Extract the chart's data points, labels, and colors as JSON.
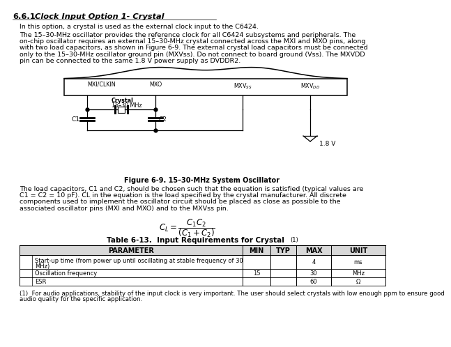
{
  "title_num": "6.6.1",
  "title_text": "Clock Input Option 1- Crystal",
  "para1": "In this option, a crystal is used as the external clock input to the C6424.",
  "p2_l1": "The 15–30-MHz oscillator provides the reference clock for all C6424 subsystems and peripherals. The",
  "p2_l2": "on-chip oscillator requires an external 15–30-MHz crystal connected across the MXI and MXO pins, along",
  "p2_l3": "with two load capacitors, as shown in Figure 6-9. The external crystal load capacitors must be connected",
  "p2_l4": "only to the 15–30-MHz oscillator ground pin (MXVss). Do not connect to board ground (Vss). The MXVDD",
  "p2_l5": "pin can be connected to the same 1.8 V power supply as DVDDR2.",
  "figure_caption": "Figure 6-9. 15–30-MHz System Oscillator",
  "p3_l1": "The load capacitors, C1 and C2, should be chosen such that the equation is satisfied (typical values are",
  "p3_l2": "C1 = C2 = 10 pF). CL in the equation is the load specified by the crystal manufacturer. All discrete",
  "p3_l3": "components used to implement the oscillator circuit should be placed as close as possible to the",
  "p3_l4": "associated oscillator pins (MXI and MXO) and to the MXVss pin.",
  "table_title": "Table 6-13.  Input Requirements for Crystal",
  "table_sup": "(1)",
  "table_headers": [
    "PARAMETER",
    "MIN",
    "TYP",
    "MAX",
    "UNIT"
  ],
  "row0_param": "Start-up time (from power up until oscillating at stable frequency of 30",
  "row0_param2": "MHz)",
  "row0_max": "4",
  "row0_unit": "ms",
  "row1_param": "Oscillation frequency",
  "row1_min": "15",
  "row1_max": "30",
  "row1_unit": "MHz",
  "row2_param": "ESR",
  "row2_max": "60",
  "row2_unit": "Ω",
  "fn_l1": "(1)  For audio applications, stability of the input clock is very important. The user should select crystals with low enough ppm to ensure good",
  "fn_l2": "audio quality for the specific application.",
  "bg_color": "#ffffff"
}
